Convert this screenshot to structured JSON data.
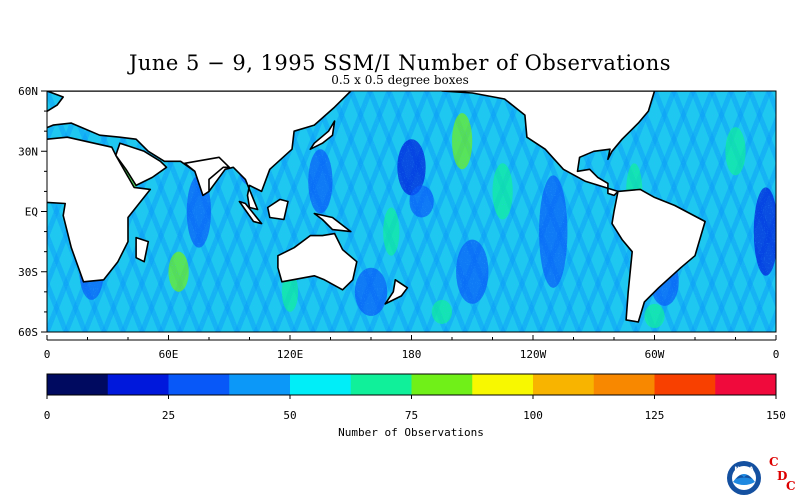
{
  "header": {
    "title": "June 5 − 9, 1995 SSM/I Number of Observations",
    "subtitle": "0.5 x 0.5 degree boxes"
  },
  "map": {
    "lat_labels": [
      "60N",
      "30N",
      "EQ",
      "30S",
      "60S"
    ],
    "lat_values": [
      60,
      30,
      0,
      -30,
      -60
    ],
    "lon_labels": [
      "0",
      "60E",
      "120E",
      "180",
      "120W",
      "60W",
      "0"
    ],
    "lon_values": [
      0,
      60,
      120,
      180,
      240,
      300,
      360
    ],
    "lat_range": [
      -60,
      60
    ],
    "lon_range": [
      0,
      360
    ],
    "ocean_base_color": "#1ec8f0",
    "land_color": "#ffffff",
    "coastline_color": "#000000"
  },
  "colorbar": {
    "label": "Number of Observations",
    "tick_labels": [
      "0",
      "25",
      "50",
      "75",
      "100",
      "125",
      "150"
    ],
    "tick_values": [
      0,
      25,
      50,
      75,
      100,
      125,
      150
    ],
    "range": [
      0,
      150
    ],
    "colors": [
      "#000a60",
      "#0018dc",
      "#0858f8",
      "#0c98f8",
      "#00eef8",
      "#10f09a",
      "#70f018",
      "#f8f800",
      "#f8b400",
      "#f88800",
      "#f84000",
      "#f00a3c"
    ]
  },
  "logo": {
    "text": "NOAA",
    "letters": [
      "C",
      "D",
      "C"
    ],
    "letter_color": "#dd0000",
    "circle_color": "#1450a0"
  }
}
